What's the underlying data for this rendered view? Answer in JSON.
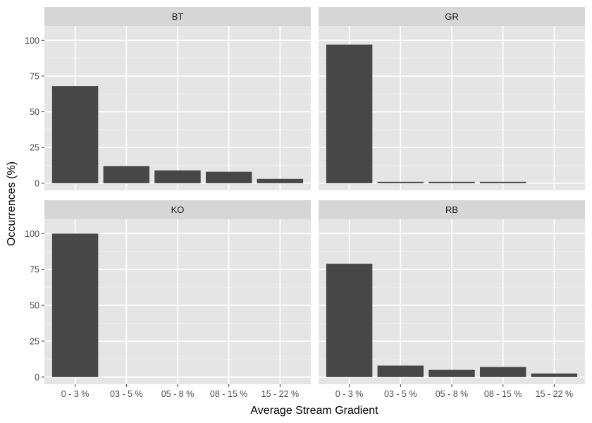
{
  "chart_data": {
    "type": "bar",
    "layout": "facet_wrap 2x2",
    "xlabel": "Average Stream Gradient",
    "ylabel": "Occurrences (%)",
    "ylim": [
      -5,
      110
    ],
    "yticks": [
      0,
      25,
      50,
      75,
      100
    ],
    "categories": [
      "0 - 3 %",
      "03 - 5 %",
      "05 - 8 %",
      "08 - 15 %",
      "15 - 22 %"
    ],
    "grid": true,
    "colors": {
      "bar": "#474747",
      "panel_bg": "#e5e5e5",
      "grid_major": "#ffffff",
      "grid_minor": "#f2f2f2",
      "strip_bg": "#d6d6d6"
    },
    "facets": [
      {
        "name": "BT",
        "values": [
          68,
          12,
          9,
          8,
          3
        ]
      },
      {
        "name": "GR",
        "values": [
          97,
          1,
          1,
          1,
          0
        ]
      },
      {
        "name": "KO",
        "values": [
          100,
          0,
          0,
          0,
          0
        ]
      },
      {
        "name": "RB",
        "values": [
          79,
          8,
          5,
          7,
          2.5
        ]
      }
    ]
  }
}
